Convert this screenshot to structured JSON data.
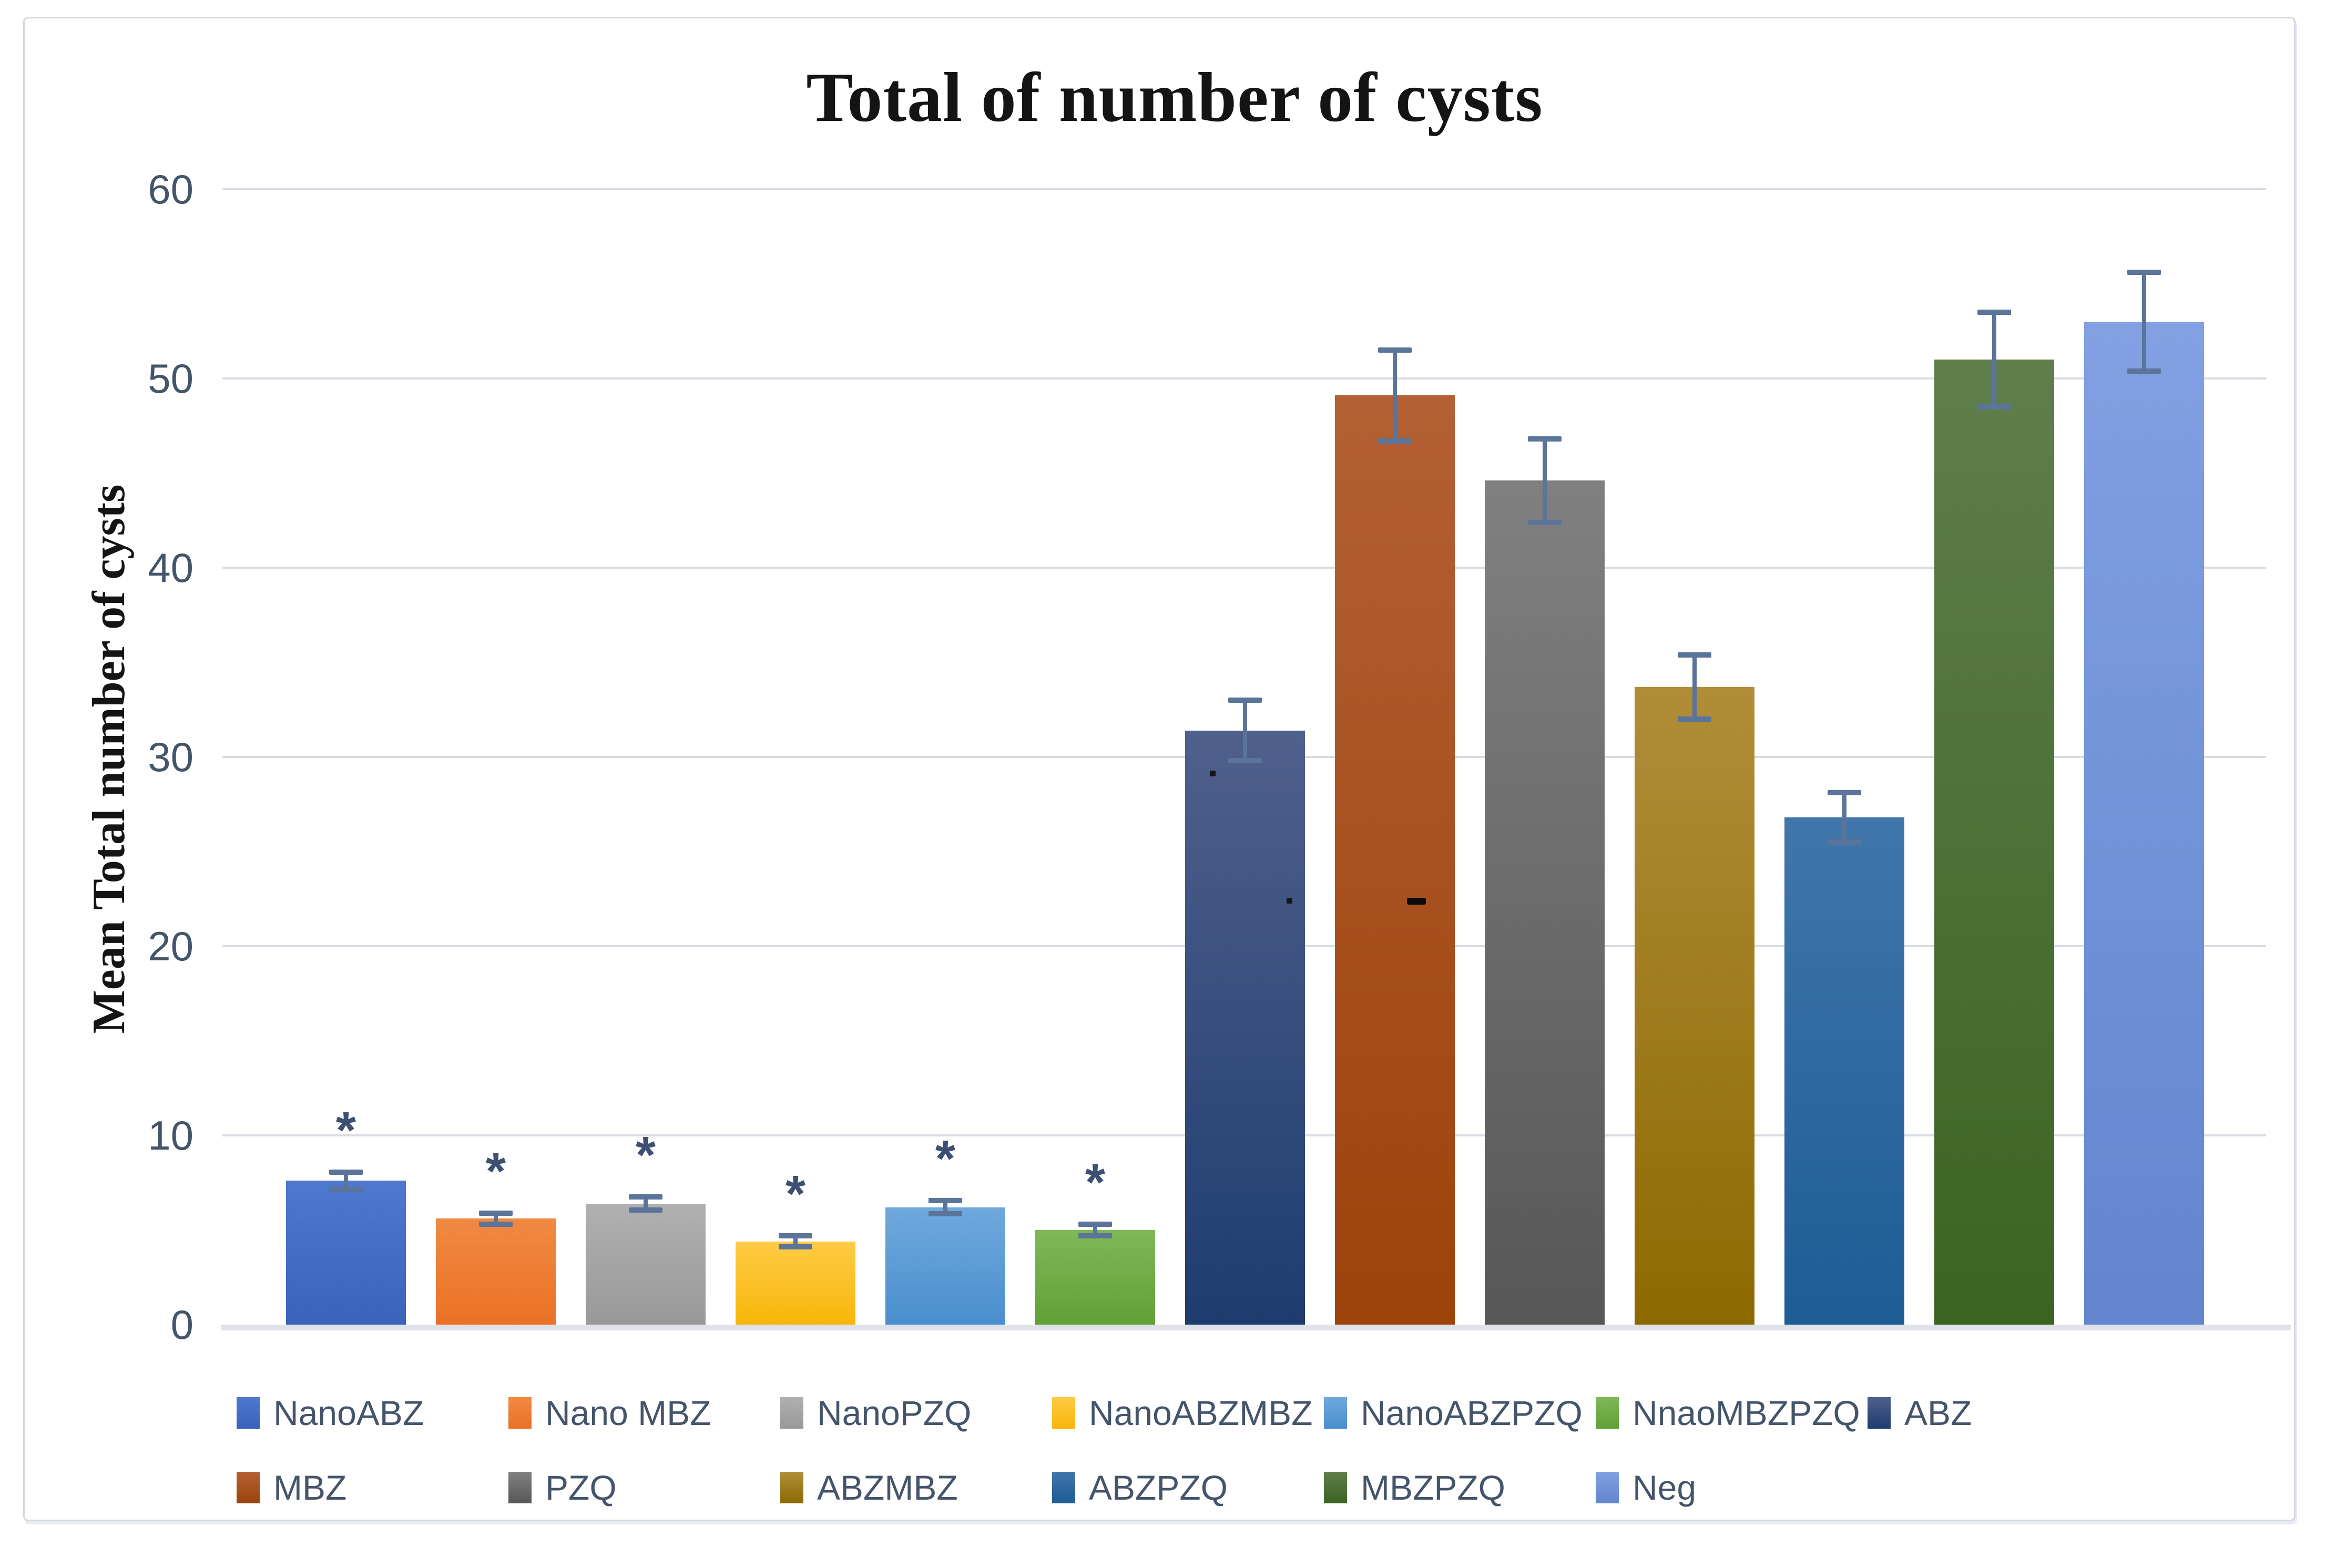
{
  "chart_data": {
    "type": "bar",
    "title": "Total of number of cysts",
    "xlabel": "",
    "ylabel": "Mean Total number of cysts",
    "ylim": [
      0,
      60
    ],
    "yticks": [
      0,
      10,
      20,
      30,
      40,
      50,
      60
    ],
    "grid": true,
    "legend_position": "bottom",
    "legend_rows": [
      7,
      6
    ],
    "significance_marker": "*",
    "categories": [
      "NanoABZ",
      "Nano MBZ",
      "NanoPZQ",
      "NanoABZMBZ",
      "NanoABZPZQ",
      "NnaoMBZPZQ",
      "ABZ",
      "MBZ",
      "PZQ",
      "ABZMBZ",
      "ABZPZQ",
      "MBZPZQ",
      "Neg"
    ],
    "series": [
      {
        "name": "Mean Total number of cysts",
        "values": [
          7.6,
          5.6,
          6.4,
          4.4,
          6.2,
          5.0,
          31.4,
          49.1,
          44.6,
          33.7,
          26.8,
          51.0,
          53.0
        ],
        "errors": [
          0.45,
          0.3,
          0.35,
          0.3,
          0.35,
          0.3,
          1.6,
          2.4,
          2.2,
          1.7,
          1.3,
          2.5,
          2.6
        ],
        "significant": [
          true,
          true,
          true,
          true,
          true,
          true,
          false,
          false,
          false,
          false,
          false,
          false,
          false
        ]
      }
    ],
    "bars": [
      {
        "label": "NanoABZ",
        "value": 7.6,
        "error": 0.45,
        "significant": true,
        "color_top": "#4E79CF",
        "color_bottom": "#3A63BC"
      },
      {
        "label": "Nano MBZ",
        "value": 5.6,
        "error": 0.3,
        "significant": true,
        "color_top": "#F18943",
        "color_bottom": "#EA7124"
      },
      {
        "label": "NanoPZQ",
        "value": 6.4,
        "error": 0.35,
        "significant": true,
        "color_top": "#B0B0B0",
        "color_bottom": "#999999"
      },
      {
        "label": "NanoABZMBZ",
        "value": 4.4,
        "error": 0.3,
        "significant": true,
        "color_top": "#FFCB45",
        "color_bottom": "#F8B60A"
      },
      {
        "label": "NanoABZPZQ",
        "value": 6.2,
        "error": 0.35,
        "significant": true,
        "color_top": "#6FA8DD",
        "color_bottom": "#4A8FCE"
      },
      {
        "label": "NnaoMBZPZQ",
        "value": 5.0,
        "error": 0.3,
        "significant": true,
        "color_top": "#80B758",
        "color_bottom": "#61A136"
      },
      {
        "label": "ABZ",
        "value": 31.4,
        "error": 1.6,
        "significant": false,
        "color_top": "#50608D",
        "color_bottom": "#1E3C6F"
      },
      {
        "label": "MBZ",
        "value": 49.1,
        "error": 2.4,
        "significant": false,
        "color_top": "#B36034",
        "color_bottom": "#9C430A"
      },
      {
        "label": "PZQ",
        "value": 44.6,
        "error": 2.2,
        "significant": false,
        "color_top": "#808080",
        "color_bottom": "#575757"
      },
      {
        "label": "ABZMBZ",
        "value": 33.7,
        "error": 1.7,
        "significant": false,
        "color_top": "#B18D3A",
        "color_bottom": "#8D6A00"
      },
      {
        "label": "ABZPZQ",
        "value": 26.8,
        "error": 1.3,
        "significant": false,
        "color_top": "#4176AA",
        "color_bottom": "#1D5C95"
      },
      {
        "label": "MBZPZQ",
        "value": 51.0,
        "error": 2.5,
        "significant": false,
        "color_top": "#5F7E4C",
        "color_bottom": "#3B6420"
      },
      {
        "label": "Neg",
        "value": 53.0,
        "error": 2.6,
        "significant": false,
        "color_top": "#82A0E2",
        "color_bottom": "#6385D0"
      }
    ],
    "annotations": [
      {
        "shape": "dot",
        "bar": "ABZ",
        "value": 29.1,
        "x_frac": 0.23
      },
      {
        "shape": "dot",
        "bar": "ABZ",
        "value": 22.4,
        "x_frac": 0.87
      },
      {
        "shape": "dash",
        "bar": "MBZ",
        "value": 22.4,
        "x_frac": 0.68
      }
    ],
    "style": {
      "grid_color": "#D9DCE2",
      "axis_line_color": "#DFE3E9",
      "tick_label_color": "#44546A",
      "legend_text_color": "#44546A",
      "error_bar_color": "#5B7499",
      "star_color": "#3D4F73",
      "title_color": "#141414",
      "frame_border_color": "#D3D7DE",
      "background_color": "#FFFFFF"
    }
  }
}
